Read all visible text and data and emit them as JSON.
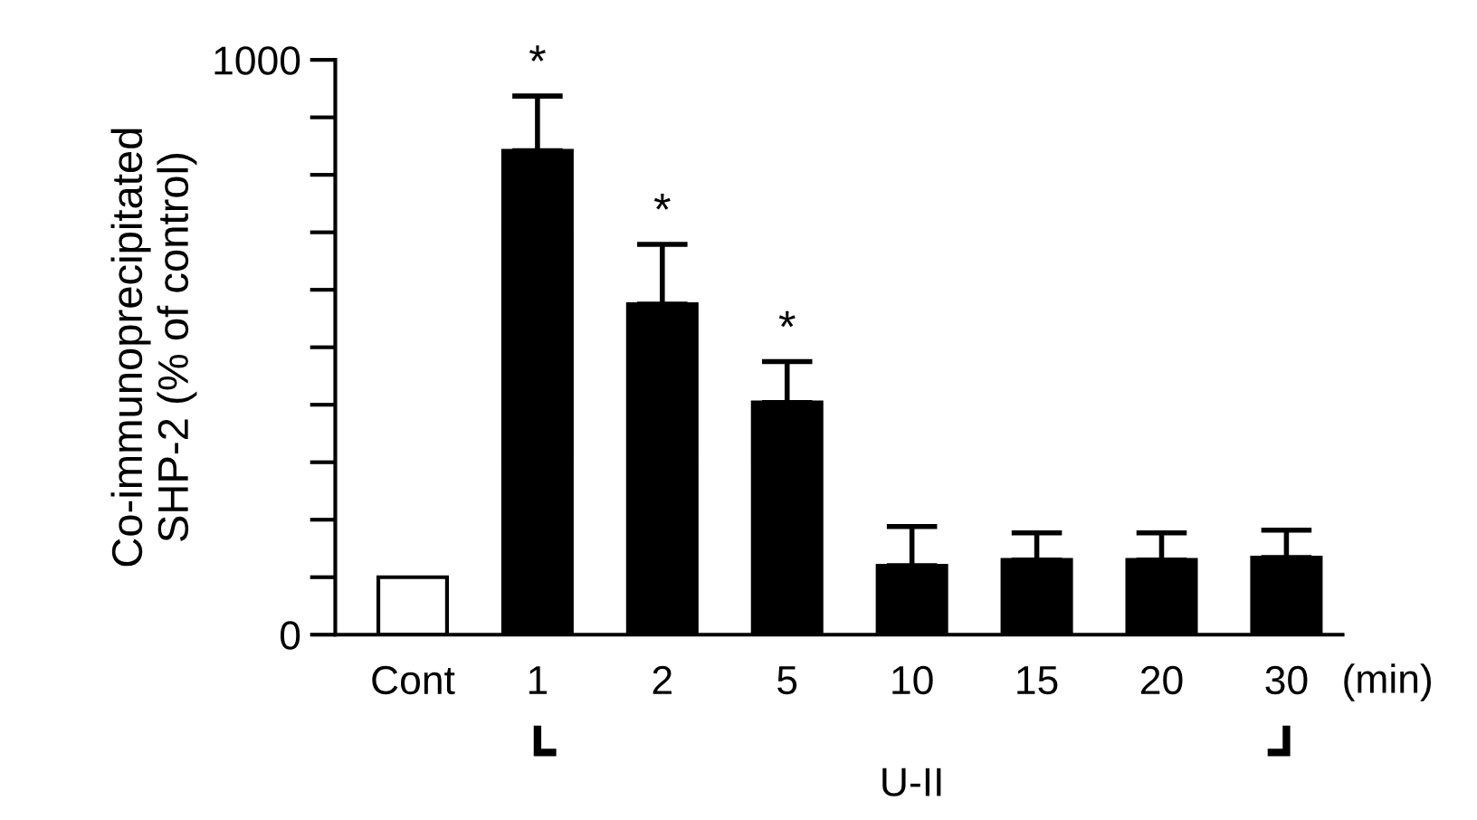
{
  "chart_data": {
    "type": "bar",
    "ylabel": "Co-immunoprecipitated\nSHP-2 (% of control)",
    "categories": [
      "Cont",
      "1",
      "2",
      "5",
      "10",
      "15",
      "20",
      "30"
    ],
    "values": [
      100,
      842,
      575,
      404,
      120,
      130,
      130,
      134
    ],
    "colors": [
      "#ffffff",
      "#000000",
      "#000000",
      "#000000",
      "#000000",
      "#000000",
      "#000000",
      "#000000"
    ],
    "errors": [
      null,
      [
        842,
        937
      ],
      [
        575,
        679
      ],
      [
        404,
        475
      ],
      [
        120,
        188
      ],
      [
        130,
        177
      ],
      [
        130,
        177
      ],
      [
        134,
        182
      ]
    ],
    "ylim": [
      0,
      1000
    ],
    "yticks": [
      0,
      {
        "value": 100,
        "label": null
      },
      {
        "value": 200,
        "label": null
      },
      {
        "value": 300,
        "label": null
      },
      {
        "value": 400,
        "label": null
      },
      {
        "value": 500,
        "label": null
      },
      {
        "value": 600,
        "label": null
      },
      {
        "value": 700,
        "label": null
      },
      {
        "value": 800,
        "label": null
      },
      {
        "value": 900,
        "label": null
      },
      1000
    ],
    "grid": false,
    "annotations": [
      {
        "text": "*",
        "x": "1",
        "y": 937
      },
      {
        "text": "*",
        "x": "2",
        "y": 679
      },
      {
        "text": "*",
        "x": "5",
        "y": 475
      },
      "(min)",
      "U-II"
    ]
  }
}
